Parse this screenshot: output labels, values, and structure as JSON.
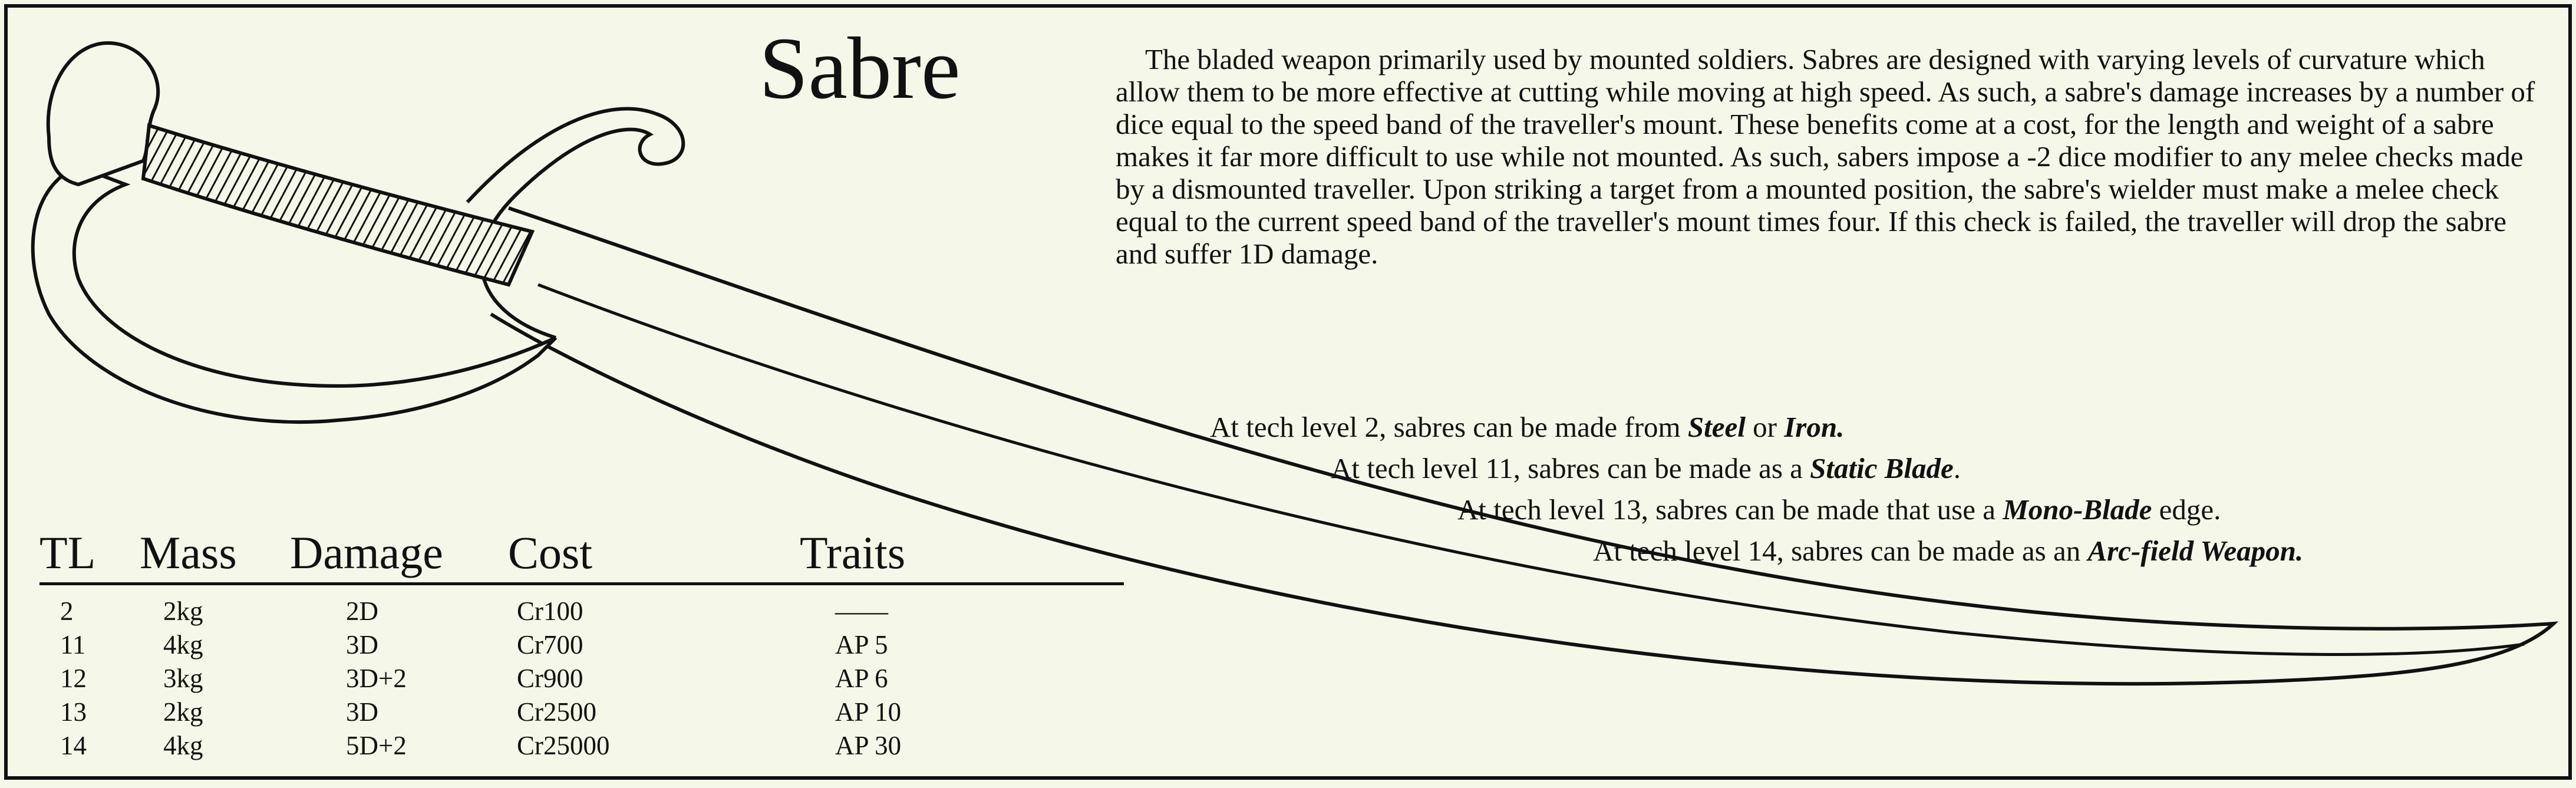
{
  "title": "Sabre",
  "description": "The bladed weapon primarily used by mounted soldiers.  Sabres are designed with varying levels of curvature which allow them to be more effective at cutting while moving at high speed. As such, a sabre's damage increases by a number of dice equal to the speed band of the traveller's mount. These benefits come at a cost, for the length and weight of a sabre makes it far more difficult to use while not mounted. As such, sabers impose a -2 dice modifier to any melee checks made by a dismounted traveller. Upon striking a target from a mounted position, the sabre's wielder must make a melee check equal to the current speed band of the traveller's mount times four. If this check is failed, the traveller will drop the sabre and suffer 1D damage.",
  "tech_notes": [
    {
      "prefix": "At tech level 2, sabres can be made from ",
      "em1": "Steel",
      "mid": " or ",
      "em2": "Iron.",
      "suffix": ""
    },
    {
      "prefix": "At tech level 11, sabres can be made as a ",
      "em1": "Static Blade",
      "mid": "",
      "em2": "",
      "suffix": "."
    },
    {
      "prefix": "At tech level 13, sabres can be made that use a ",
      "em1": "Mono-Blade",
      "mid": "",
      "em2": "",
      "suffix": " edge."
    },
    {
      "prefix": "At tech level 14, sabres can be made as an ",
      "em1": "Arc-field Weapon.",
      "mid": "",
      "em2": "",
      "suffix": ""
    }
  ],
  "table": {
    "headers": [
      "TL",
      "Mass",
      "Damage",
      "Cost",
      "Traits"
    ],
    "rows": [
      [
        "2",
        "2kg",
        "2D",
        "Cr100",
        "——"
      ],
      [
        "11",
        "4kg",
        "3D",
        "Cr700",
        "AP 5"
      ],
      [
        "12",
        "3kg",
        "3D+2",
        "Cr900",
        "AP 6"
      ],
      [
        "13",
        "2kg",
        "3D",
        "Cr2500",
        "AP 10"
      ],
      [
        "14",
        "4kg",
        "5D+2",
        "Cr25000",
        "AP 30"
      ]
    ]
  },
  "colors": {
    "background": "#f5f7e8",
    "ink": "#111111"
  }
}
